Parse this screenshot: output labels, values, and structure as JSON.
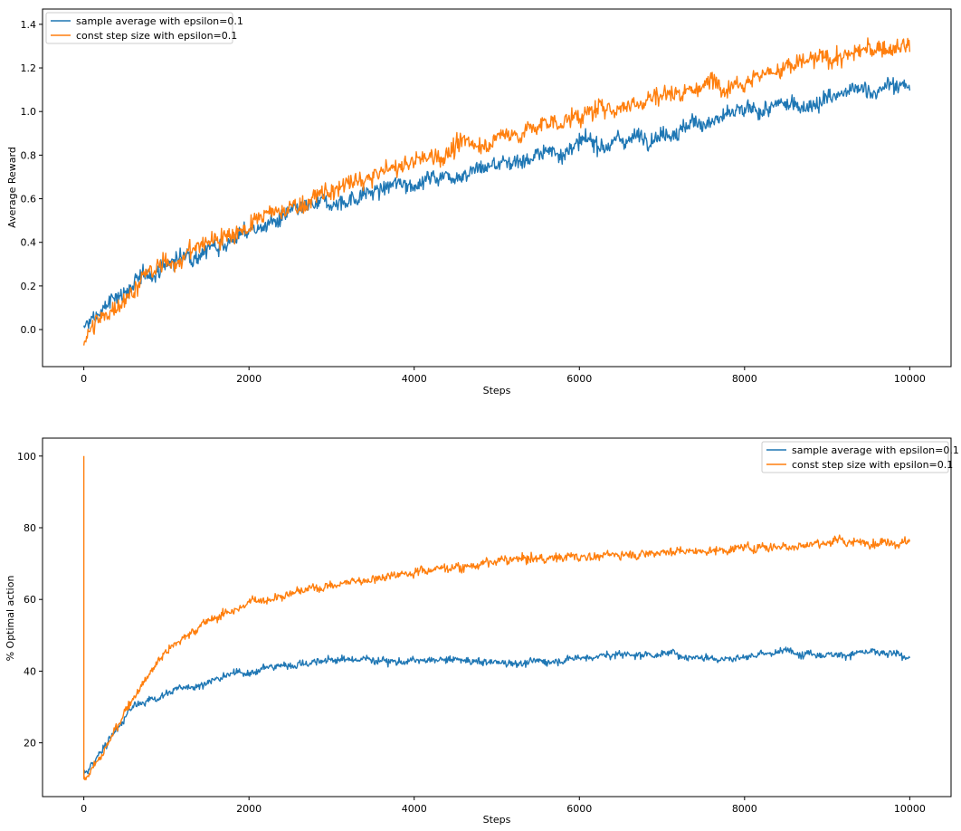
{
  "chart_data": [
    {
      "type": "line",
      "xlabel": "Steps",
      "ylabel": "Average Reward",
      "xlim": [
        -500,
        10500
      ],
      "ylim": [
        -0.17,
        1.47
      ],
      "xticks": [
        0,
        2000,
        4000,
        6000,
        8000,
        10000
      ],
      "yticks": [
        0.0,
        0.2,
        0.4,
        0.6,
        0.8,
        1.0,
        1.2,
        1.4
      ],
      "legend": "top-left",
      "grid": false,
      "series": [
        {
          "name": "sample average with epsilon=0.1",
          "color": "#1f77b4",
          "x": [
            0,
            250,
            500,
            750,
            1000,
            1500,
            2000,
            2500,
            3000,
            3500,
            4000,
            4500,
            5000,
            5500,
            6000,
            6500,
            7000,
            7500,
            8000,
            8500,
            9000,
            9500,
            10000
          ],
          "y": [
            0.0,
            0.1,
            0.18,
            0.24,
            0.3,
            0.38,
            0.45,
            0.52,
            0.58,
            0.63,
            0.68,
            0.72,
            0.76,
            0.8,
            0.84,
            0.87,
            0.91,
            0.95,
            0.99,
            1.02,
            1.06,
            1.1,
            1.12
          ],
          "noise": 0.025
        },
        {
          "name": "const step size with epsilon=0.1",
          "color": "#ff7f0e",
          "x": [
            0,
            250,
            500,
            750,
            1000,
            1500,
            2000,
            2500,
            3000,
            3500,
            4000,
            4500,
            5000,
            5500,
            6000,
            6500,
            7000,
            7500,
            8000,
            8500,
            9000,
            9500,
            10000
          ],
          "y": [
            -0.05,
            0.06,
            0.16,
            0.24,
            0.3,
            0.4,
            0.48,
            0.56,
            0.63,
            0.7,
            0.77,
            0.83,
            0.88,
            0.93,
            0.98,
            1.03,
            1.08,
            1.12,
            1.16,
            1.2,
            1.24,
            1.28,
            1.3
          ],
          "noise": 0.028
        }
      ]
    },
    {
      "type": "line",
      "xlabel": "Steps",
      "ylabel": "% Optimal action",
      "xlim": [
        -500,
        10500
      ],
      "ylim": [
        5,
        105
      ],
      "xticks": [
        0,
        2000,
        4000,
        6000,
        8000,
        10000
      ],
      "yticks": [
        20,
        40,
        60,
        80,
        100
      ],
      "legend": "top-right",
      "grid": false,
      "series": [
        {
          "name": "sample average with epsilon=0.1",
          "color": "#1f77b4",
          "x": [
            0,
            50,
            200,
            400,
            600,
            800,
            1000,
            1500,
            2000,
            2500,
            3000,
            3500,
            4000,
            4500,
            5000,
            5500,
            6000,
            6500,
            7000,
            7500,
            8000,
            8500,
            9000,
            9500,
            10000
          ],
          "y": [
            11,
            12,
            17,
            24,
            30,
            32,
            34,
            37,
            40,
            42,
            43,
            43.5,
            42.5,
            43,
            42.5,
            42.5,
            44,
            44.5,
            45,
            44,
            44,
            45.5,
            45,
            45,
            44
          ],
          "noise": 0.7
        },
        {
          "name": "const step size with epsilon=0.1",
          "color": "#ff7f0e",
          "x": [
            0,
            50,
            200,
            400,
            600,
            800,
            1000,
            1500,
            2000,
            2500,
            3000,
            3500,
            4000,
            4500,
            5000,
            5500,
            6000,
            6500,
            7000,
            7500,
            8000,
            8500,
            9000,
            9500,
            10000
          ],
          "y": [
            10,
            11,
            16,
            24,
            33,
            40,
            46,
            54,
            59,
            62,
            64,
            66,
            68,
            69,
            70.5,
            71.5,
            72,
            72.5,
            73.5,
            73.5,
            74.5,
            75,
            76,
            76,
            76.5
          ],
          "noise": 0.8,
          "spike": {
            "x": 0,
            "y": 100
          }
        }
      ]
    }
  ]
}
